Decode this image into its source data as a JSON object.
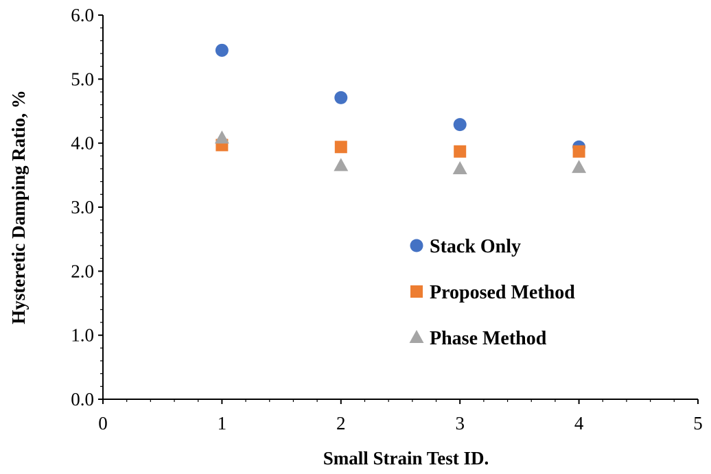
{
  "chart_data": {
    "type": "scatter",
    "title": "",
    "xlabel": "Small Strain Test ID.",
    "ylabel": "Hysteretic Damping Ratio, %",
    "xlim": [
      0,
      5
    ],
    "ylim": [
      0,
      6
    ],
    "x_ticks": [
      "0",
      "1",
      "2",
      "3",
      "4",
      "5"
    ],
    "y_ticks": [
      "0.0",
      "1.0",
      "2.0",
      "3.0",
      "4.0",
      "5.0",
      "6.0"
    ],
    "grid": false,
    "legend_position": "center-right",
    "series": [
      {
        "name": "Stack Only",
        "marker": "circle",
        "color": "#4472C4",
        "x": [
          1,
          2,
          3,
          4
        ],
        "y": [
          5.45,
          4.71,
          4.29,
          3.94
        ]
      },
      {
        "name": "Proposed Method",
        "marker": "square",
        "color": "#ED7D31",
        "x": [
          1,
          2,
          3,
          4
        ],
        "y": [
          3.97,
          3.94,
          3.87,
          3.87
        ]
      },
      {
        "name": "Phase Method",
        "marker": "triangle",
        "color": "#A5A5A5",
        "x": [
          1,
          2,
          3,
          4
        ],
        "y": [
          4.08,
          3.65,
          3.6,
          3.62
        ]
      }
    ]
  }
}
